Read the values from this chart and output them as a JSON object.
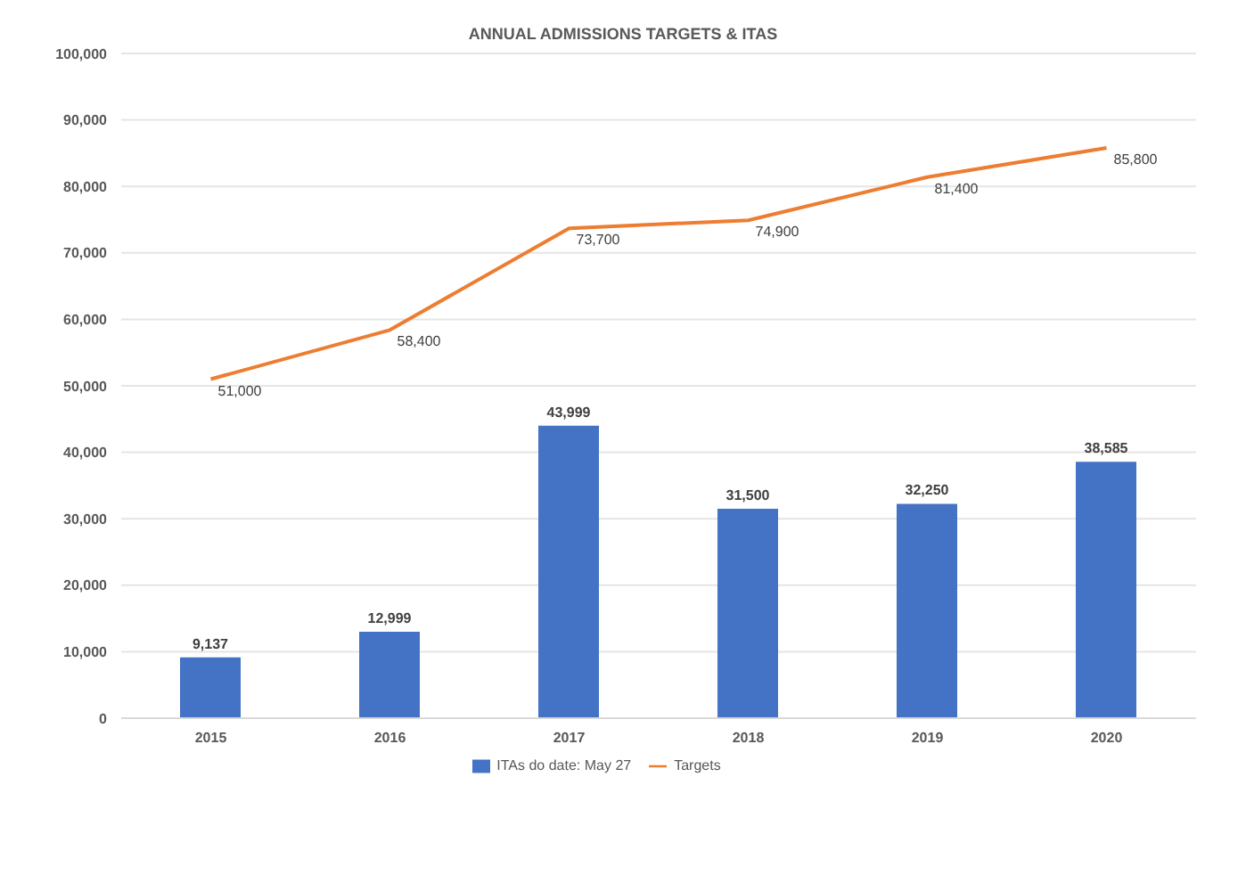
{
  "chart_data": {
    "type": "bar",
    "title": "ANNUAL ADMISSIONS TARGETS & ITAS",
    "categories": [
      "2015",
      "2016",
      "2017",
      "2018",
      "2019",
      "2020"
    ],
    "series": [
      {
        "name": "ITAs do date: May 27",
        "color": "#4472c4",
        "values": [
          9137,
          12999,
          43999,
          31500,
          32250,
          38585
        ],
        "value_labels": [
          "9,137",
          "12,999",
          "43,999",
          "31,500",
          "32,250",
          "38,585"
        ]
      },
      {
        "name": "Targets",
        "type": "line",
        "color": "#ed7d31",
        "values": [
          51000,
          58400,
          73700,
          74900,
          81400,
          85800
        ],
        "value_labels": [
          "51,000",
          "58,400",
          "73,700",
          "74,900",
          "81,400",
          "85,800"
        ]
      }
    ],
    "ylim": [
      0,
      100000
    ],
    "yticks": [
      {
        "value": 0,
        "label": "0"
      },
      {
        "value": 10000,
        "label": "10,000"
      },
      {
        "value": 20000,
        "label": "20,000"
      },
      {
        "value": 30000,
        "label": "30,000"
      },
      {
        "value": 40000,
        "label": "40,000"
      },
      {
        "value": 50000,
        "label": "50,000"
      },
      {
        "value": 60000,
        "label": "60,000"
      },
      {
        "value": 70000,
        "label": "70,000"
      },
      {
        "value": 80000,
        "label": "80,000"
      },
      {
        "value": 90000,
        "label": "90,000"
      },
      {
        "value": 100000,
        "label": "100,000"
      }
    ],
    "grid": "y",
    "legend": "bottom",
    "marker": "none",
    "line_style": "solid"
  }
}
